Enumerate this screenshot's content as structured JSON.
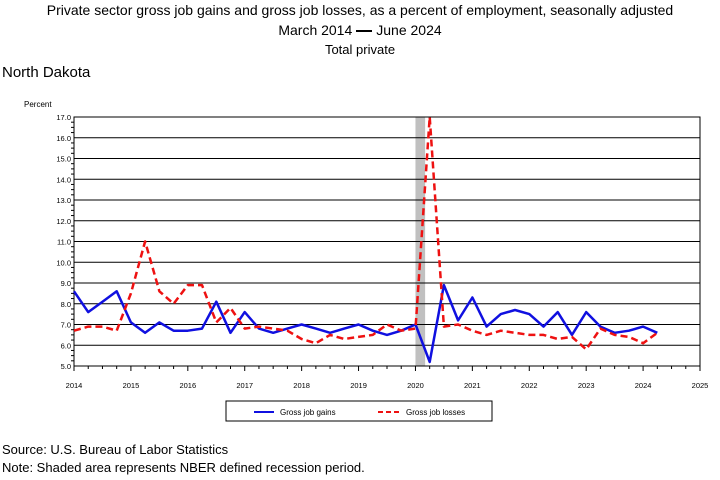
{
  "title": {
    "line1": "Private sector gross job gains and gross job losses, as a percent of employment, seasonally adjusted",
    "line2_start": "March 2014",
    "line2_end": "June 2024",
    "line3": "Total private"
  },
  "region": "North Dakota",
  "source": "Source: U.S. Bureau of Labor Statistics",
  "note": "Note: Shaded area represents NBER defined recession period.",
  "colors": {
    "gains": "#1010e0",
    "losses": "#ee1111",
    "recession": "#c0c0c0",
    "grid": "#000000"
  },
  "chart_data": {
    "type": "line",
    "ylabel": "Percent",
    "ylim": [
      5.0,
      17.0
    ],
    "xlim": [
      2014,
      2025
    ],
    "x_ticks": [
      "2014",
      "2015",
      "2016",
      "2017",
      "2018",
      "2019",
      "2020",
      "2021",
      "2022",
      "2023",
      "2024",
      "2025"
    ],
    "y_ticks": [
      "5.0",
      "6.0",
      "7.0",
      "8.0",
      "9.0",
      "10.0",
      "11.0",
      "12.0",
      "13.0",
      "14.0",
      "15.0",
      "16.0",
      "17.0"
    ],
    "grid": true,
    "legend_position": "bottom",
    "recession": {
      "start": 2020.0,
      "end": 2020.17
    },
    "x": [
      2014.0,
      2014.25,
      2014.5,
      2014.75,
      2015.0,
      2015.25,
      2015.5,
      2015.75,
      2016.0,
      2016.25,
      2016.5,
      2016.75,
      2017.0,
      2017.25,
      2017.5,
      2017.75,
      2018.0,
      2018.25,
      2018.5,
      2018.75,
      2019.0,
      2019.25,
      2019.5,
      2019.75,
      2020.0,
      2020.25,
      2020.5,
      2020.75,
      2021.0,
      2021.25,
      2021.5,
      2021.75,
      2022.0,
      2022.25,
      2022.5,
      2022.75,
      2023.0,
      2023.25,
      2023.5,
      2023.75,
      2024.0,
      2024.25
    ],
    "series": [
      {
        "name": "Gross job gains",
        "style": "solid",
        "values": [
          8.6,
          7.6,
          8.1,
          8.6,
          7.1,
          6.6,
          7.1,
          6.7,
          6.7,
          6.8,
          8.1,
          6.6,
          7.6,
          6.8,
          6.6,
          6.8,
          7.0,
          6.8,
          6.6,
          6.8,
          7.0,
          6.7,
          6.5,
          6.7,
          7.0,
          5.2,
          8.9,
          7.2,
          8.3,
          6.9,
          7.5,
          7.7,
          7.5,
          6.9,
          7.6,
          6.5,
          7.6,
          6.9,
          6.6,
          6.7,
          6.9,
          6.6
        ]
      },
      {
        "name": "Gross job losses",
        "style": "dashed",
        "values": [
          6.7,
          6.9,
          6.9,
          6.7,
          8.5,
          11.0,
          8.6,
          8.0,
          8.9,
          8.9,
          7.1,
          7.8,
          6.8,
          6.9,
          6.8,
          6.7,
          6.3,
          6.1,
          6.5,
          6.3,
          6.4,
          6.5,
          7.0,
          6.7,
          6.8,
          17.0,
          6.9,
          7.0,
          6.7,
          6.5,
          6.7,
          6.6,
          6.5,
          6.5,
          6.3,
          6.4,
          5.8,
          6.8,
          6.5,
          6.4,
          6.1,
          6.6
        ]
      }
    ]
  }
}
